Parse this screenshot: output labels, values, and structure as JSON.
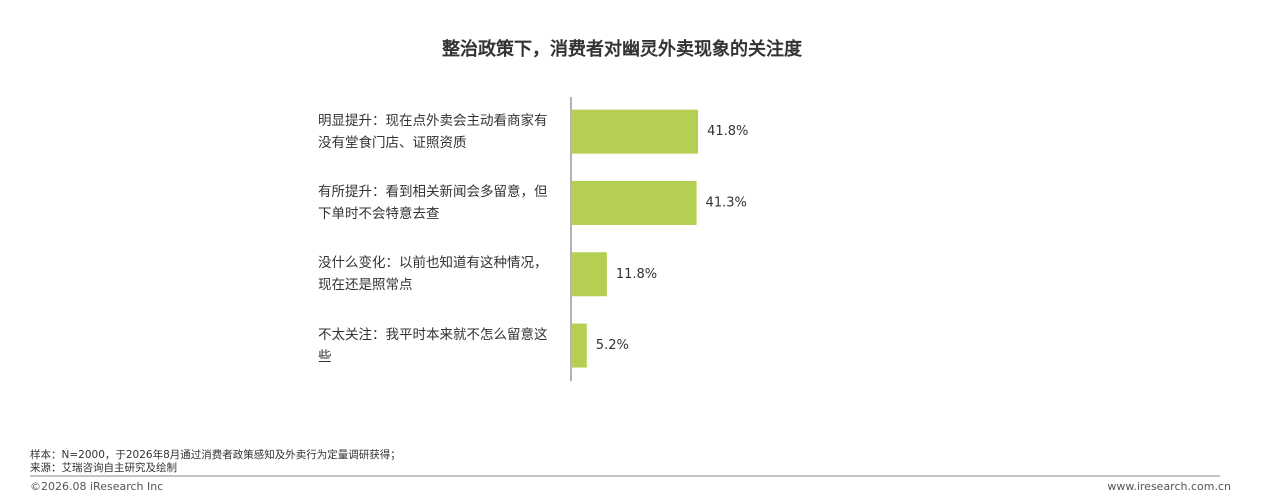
{
  "chart_data": {
    "type": "barh",
    "title": "整治政策下，消费者对幽灵外卖现象的关注度",
    "categories": [
      "明显提升：现在点外卖会主动看商家有没有堂食门店、证照资质",
      "有所提升：看到相关新闻会多留意，但下单时不会特意去查",
      "没什么变化：以前也知道有这种情况，现在还是照常点",
      "不太关注：我平时本来就不怎么留意这些"
    ],
    "values": [
      41.8,
      41.3,
      11.8,
      5.2
    ],
    "value_labels": [
      "41.8%",
      "41.3%",
      "11.8%",
      "5.2%"
    ],
    "color": "#b5cf52",
    "xlim": [
      0,
      100
    ]
  },
  "footer": {
    "notes": [
      "样本：N=2000，于2026年8月通过消费者政策感知及外卖行为定量调研获得；",
      "来源：艾瑞咨询自主研究及绘制"
    ],
    "copyright": "©2026.08 iResearch Inc",
    "website": "www.iresearch.com.cn"
  }
}
